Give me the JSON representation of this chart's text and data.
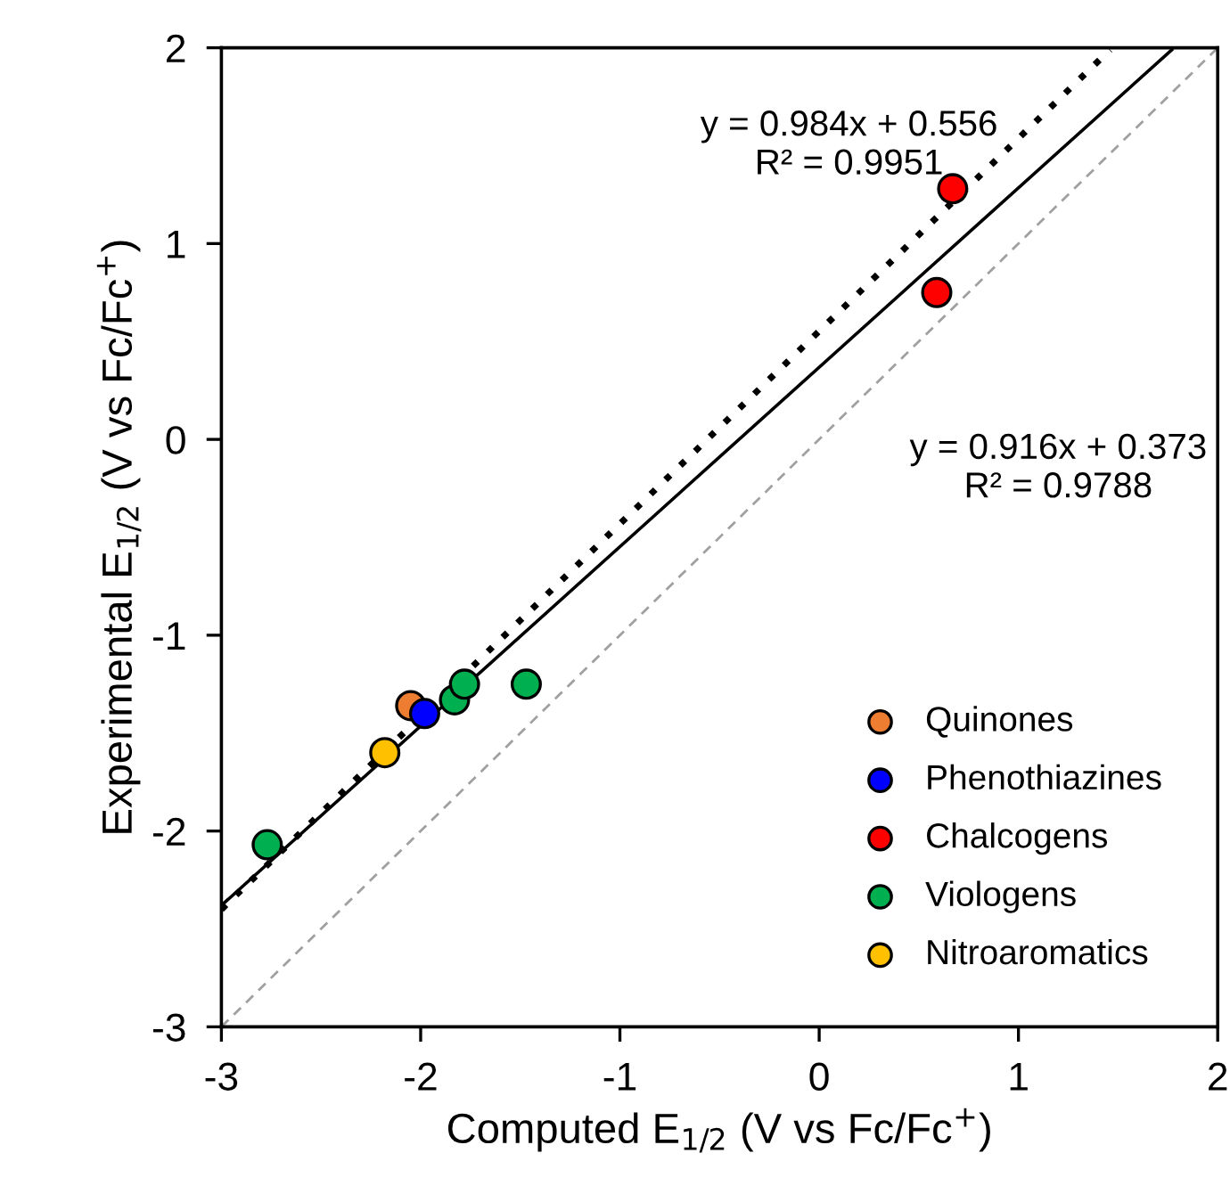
{
  "chart_data": {
    "type": "scatter",
    "xlabel": "Computed E$_{1/2}$ (V vs Fc/Fc$^{+}$)",
    "ylabel": "Experimental E$_{1/2}$ (V vs Fc/Fc$^{+}$)",
    "xlim": [
      -3,
      2
    ],
    "ylim": [
      -3,
      2
    ],
    "xticks": [
      -3,
      -2,
      -1,
      0,
      1,
      2
    ],
    "yticks": [
      -3,
      -2,
      -1,
      0,
      1,
      2
    ],
    "grid": false,
    "legend": "bottom right",
    "marker": "circle",
    "annotations": [
      "y = 0.984x + 0.556\nR² = 0.9951",
      "y = 0.916x + 0.373\nR² = 0.9788"
    ],
    "series": [
      {
        "type": "line",
        "x": [
          -3,
          2
        ],
        "values": [
          -3,
          2
        ],
        "color": "#a0a0a0",
        "line_style": "dashed",
        "marker": "none"
      },
      {
        "type": "line",
        "x": [
          -3,
          1.46
        ],
        "values": [
          -2.4,
          1.99
        ],
        "color": "#000000",
        "line_style": "dotted",
        "marker": "none"
      },
      {
        "type": "line",
        "x": [
          -3,
          1.77
        ],
        "values": [
          -2.38,
          1.99
        ],
        "color": "#000000",
        "line_style": "solid",
        "marker": "none"
      },
      {
        "name": "Quinones",
        "color": "#ed7d31",
        "x": [
          -2.05
        ],
        "values": [
          -1.36
        ]
      },
      {
        "name": "Phenothiazines",
        "color": "#0000ff",
        "x": [
          -1.98
        ],
        "values": [
          -1.4
        ]
      },
      {
        "name": "Chalcogens",
        "color": "#ff0000",
        "x": [
          0.67,
          0.59
        ],
        "values": [
          1.28,
          0.75
        ]
      },
      {
        "name": "Viologens",
        "color": "#00b050",
        "x": [
          -2.77,
          -1.83,
          -1.78,
          -1.47
        ],
        "values": [
          -2.07,
          -1.33,
          -1.25,
          -1.25
        ]
      },
      {
        "name": "Nitroaromatics",
        "color": "#ffc000",
        "x": [
          -2.18
        ],
        "values": [
          -1.6
        ]
      }
    ]
  }
}
